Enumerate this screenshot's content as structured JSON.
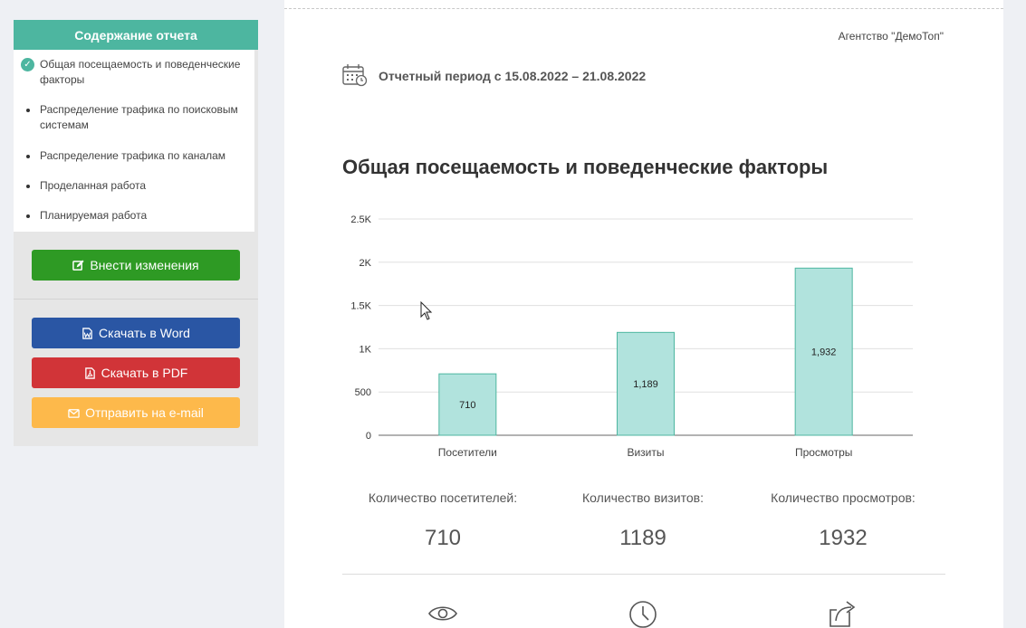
{
  "sidebar": {
    "title": "Содержание отчета",
    "items": [
      {
        "label": "Общая посещаемость и поведенческие факторы"
      },
      {
        "label": "Распределение трафика по поисковым системам"
      },
      {
        "label": "Распределение трафика по каналам"
      },
      {
        "label": "Проделанная работа"
      },
      {
        "label": "Планируемая работа"
      }
    ],
    "buttons": {
      "edit": "Внести изменения",
      "word": "Скачать в Word",
      "pdf": "Скачать в PDF",
      "email": "Отправить на e-mail"
    }
  },
  "header": {
    "agency": "Агентство \"ДемоТоп\"",
    "period": "Отчетный период с 15.08.2022 – 21.08.2022"
  },
  "section": {
    "title": "Общая посещаемость и поведенческие факторы"
  },
  "chart_data": {
    "type": "bar",
    "categories": [
      "Посетители",
      "Визиты",
      "Просмотры"
    ],
    "values": [
      710,
      1189,
      1932
    ],
    "data_labels": [
      "710",
      "1,189",
      "1,932"
    ],
    "ylim": [
      0,
      2500
    ],
    "yticks": [
      {
        "value": 0,
        "label": "0"
      },
      {
        "value": 500,
        "label": "500"
      },
      {
        "value": 1000,
        "label": "1K"
      },
      {
        "value": 1500,
        "label": "1.5K"
      },
      {
        "value": 2000,
        "label": "2K"
      },
      {
        "value": 2500,
        "label": "2.5K"
      }
    ],
    "grid": true,
    "bar_color": "#b1e3dd",
    "bar_border": "#4db6a0"
  },
  "stats": [
    {
      "label": "Количество посетителей:",
      "value": "710"
    },
    {
      "label": "Количество визитов:",
      "value": "1189"
    },
    {
      "label": "Количество просмотров:",
      "value": "1932"
    }
  ],
  "icons": [
    "eye-icon",
    "clock-icon",
    "share-icon",
    "calendar-icon",
    "edit-icon",
    "word-icon",
    "pdf-icon",
    "envelope-icon",
    "check-icon"
  ]
}
